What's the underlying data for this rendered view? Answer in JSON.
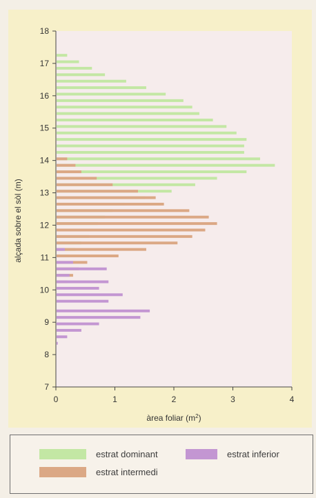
{
  "chart_data": {
    "type": "bar",
    "orientation": "horizontal",
    "ylabel": "alçada sobre el sòl (m)",
    "xlabel_main": "àrea foliar (m",
    "xlabel_sup": "2",
    "xlabel_close": ")",
    "xlim": [
      0,
      4
    ],
    "ylim": [
      7,
      18
    ],
    "xticks": [
      "0",
      "1",
      "2",
      "3",
      "4"
    ],
    "yticks": [
      "7",
      "8",
      "9",
      "10",
      "11",
      "12",
      "13",
      "14",
      "15",
      "16",
      "17",
      "18"
    ],
    "grid": false,
    "colors": {
      "estrat_dominant": "#c3e7a4",
      "estrat_intermedi": "#dba885",
      "estrat_inferior": "#c396d2"
    },
    "series": [
      {
        "name": "estrat dominant",
        "key": "estrat_dominant",
        "points": [
          [
            17.25,
            0.18
          ],
          [
            17.05,
            0.38
          ],
          [
            16.85,
            0.6
          ],
          [
            16.65,
            0.82
          ],
          [
            16.45,
            1.18
          ],
          [
            16.25,
            1.52
          ],
          [
            16.05,
            1.85
          ],
          [
            15.85,
            2.15
          ],
          [
            15.65,
            2.3
          ],
          [
            15.45,
            2.42
          ],
          [
            15.25,
            2.65
          ],
          [
            15.05,
            2.88
          ],
          [
            14.85,
            3.05
          ],
          [
            14.65,
            3.22
          ],
          [
            14.45,
            3.18
          ],
          [
            14.25,
            3.18
          ],
          [
            14.05,
            3.45
          ],
          [
            13.85,
            3.7
          ],
          [
            13.65,
            3.22
          ],
          [
            13.45,
            2.72
          ],
          [
            13.25,
            2.35
          ],
          [
            13.05,
            1.95
          ],
          [
            12.85,
            1.5
          ],
          [
            12.65,
            1.15
          ],
          [
            12.45,
            0.95
          ],
          [
            12.25,
            0.82
          ],
          [
            12.05,
            0.7
          ],
          [
            11.85,
            0.62
          ],
          [
            11.65,
            0.55
          ],
          [
            11.45,
            0.42
          ],
          [
            11.25,
            0.32
          ],
          [
            11.05,
            0.22
          ]
        ]
      },
      {
        "name": "estrat intermedi",
        "key": "estrat_intermedi",
        "points": [
          [
            14.05,
            0.18
          ],
          [
            13.85,
            0.32
          ],
          [
            13.65,
            0.42
          ],
          [
            13.45,
            0.68
          ],
          [
            13.25,
            0.95
          ],
          [
            13.05,
            1.38
          ],
          [
            12.85,
            1.68
          ],
          [
            12.65,
            1.82
          ],
          [
            12.45,
            2.25
          ],
          [
            12.25,
            2.58
          ],
          [
            12.05,
            2.72
          ],
          [
            11.85,
            2.52
          ],
          [
            11.65,
            2.3
          ],
          [
            11.45,
            2.05
          ],
          [
            11.25,
            1.52
          ],
          [
            11.05,
            1.05
          ],
          [
            10.85,
            0.52
          ],
          [
            10.65,
            0.38
          ],
          [
            10.45,
            0.28
          ],
          [
            10.25,
            0.18
          ]
        ]
      },
      {
        "name": "estrat inferior",
        "key": "estrat_inferior",
        "points": [
          [
            11.25,
            0.14
          ],
          [
            10.85,
            0.28
          ],
          [
            10.65,
            0.85
          ],
          [
            10.45,
            0.22
          ],
          [
            10.25,
            0.88
          ],
          [
            10.05,
            0.72
          ],
          [
            9.85,
            1.12
          ],
          [
            9.65,
            0.88
          ],
          [
            9.35,
            1.58
          ],
          [
            9.15,
            1.42
          ],
          [
            8.95,
            0.72
          ],
          [
            8.75,
            0.42
          ],
          [
            8.55,
            0.18
          ],
          [
            8.35,
            0.02
          ]
        ]
      }
    ],
    "legend": {
      "placement": "bottom",
      "items": [
        {
          "label": "estrat dominant",
          "key": "estrat_dominant"
        },
        {
          "label": "estrat inferior",
          "key": "estrat_inferior"
        },
        {
          "label": "estrat intermedi",
          "key": "estrat_intermedi"
        }
      ]
    }
  }
}
